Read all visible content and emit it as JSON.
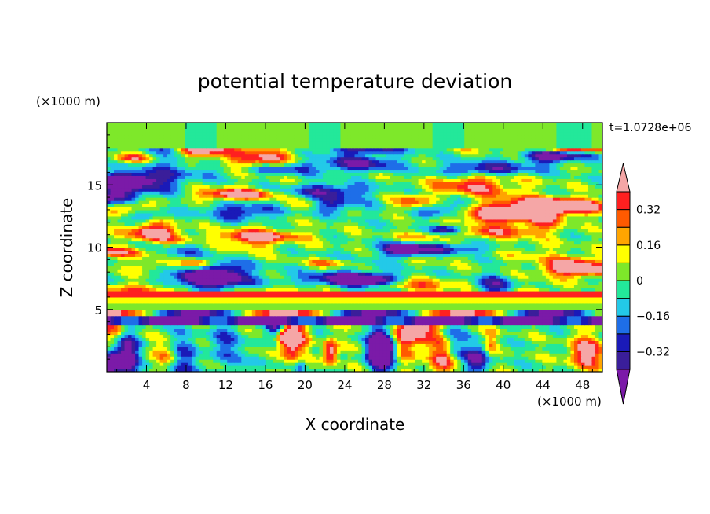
{
  "chart_data": {
    "type": "heatmap",
    "title": "potential temperature deviation",
    "xlabel": "X coordinate",
    "ylabel": "Z coordinate",
    "x_unit_label": "(×1000 m)",
    "y_unit_label": "(×1000 m)",
    "time_label": "t=1.0728e+06",
    "xlim": [
      0,
      50
    ],
    "ylim": [
      0,
      20
    ],
    "x_ticks": [
      4,
      8,
      12,
      16,
      20,
      24,
      28,
      32,
      36,
      40,
      44,
      48
    ],
    "y_ticks": [
      5,
      10,
      15
    ],
    "x_tick_labels": [
      "4",
      "8",
      "12",
      "16",
      "20",
      "24",
      "28",
      "32",
      "36",
      "40",
      "44",
      "48"
    ],
    "y_tick_labels": [
      "5",
      "10",
      "15"
    ],
    "colorbar": {
      "levels": [
        -0.4,
        -0.32,
        -0.24,
        -0.16,
        -0.08,
        0,
        0.08,
        0.16,
        0.24,
        0.32,
        0.4
      ],
      "tick_values": [
        -0.32,
        -0.16,
        0,
        0.16,
        0.32
      ],
      "tick_labels": [
        "−0.32",
        "−0.16",
        "0",
        "0.16",
        "0.32"
      ],
      "colors": [
        "#7b1aa8",
        "#3a1e9a",
        "#1a1ab8",
        "#1e6ee8",
        "#23c9e8",
        "#23e89a",
        "#7ee82a",
        "#ffff00",
        "#ffa500",
        "#ff5a00",
        "#ff2020",
        "#f5a6a6"
      ]
    }
  }
}
